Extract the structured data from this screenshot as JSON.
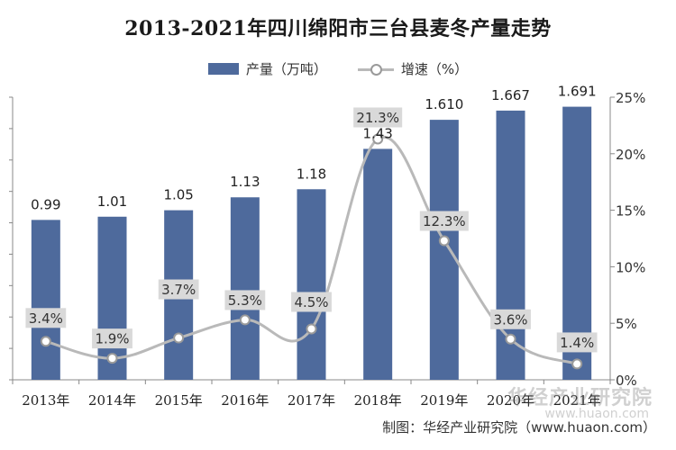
{
  "title": "2013-2021年四川绵阳市三台县麦冬产量走势",
  "source": "制图：华经产业研究院（www.huaon.com）",
  "watermark": "华经产业研究院",
  "watermark_url": "www.huaon.com",
  "colors": {
    "bar": "#4e6a9c",
    "line": "#b9b9b9",
    "marker": "#9a9a9a",
    "label_bg": "#d9d9d9"
  },
  "legend": [
    {
      "label": "产量（万吨）",
      "kind": "bar"
    },
    {
      "label": "增速（%）",
      "kind": "line"
    }
  ],
  "chart_data": {
    "type": "bar+line",
    "categories": [
      "2013年",
      "2014年",
      "2015年",
      "2016年",
      "2017年",
      "2018年",
      "2019年",
      "2020年",
      "2021年"
    ],
    "series": [
      {
        "name": "产量（万吨）",
        "type": "bar",
        "axis": "left",
        "values": [
          0.99,
          1.01,
          1.05,
          1.13,
          1.18,
          1.43,
          1.61,
          1.667,
          1.691
        ],
        "labels": [
          "0.99",
          "1.01",
          "1.05",
          "1.13",
          "1.18",
          "1.43",
          "1.610",
          "1.667",
          "1.691"
        ]
      },
      {
        "name": "增速（%）",
        "type": "line",
        "axis": "right",
        "values": [
          3.4,
          1.9,
          3.7,
          5.3,
          4.5,
          21.3,
          12.3,
          3.6,
          1.4
        ],
        "labels": [
          "3.4%",
          "1.9%",
          "3.7%",
          "5.3%",
          "4.5%",
          "21.3%",
          "12.3%",
          "3.6%",
          "1.4%"
        ]
      }
    ],
    "y_left": {
      "min": 0,
      "max": 1.75
    },
    "y_right": {
      "min": 0,
      "max": 25,
      "ticks": [
        0,
        5,
        10,
        15,
        20,
        25
      ],
      "tick_labels": [
        "0%",
        "5%",
        "10%",
        "15%",
        "20%",
        "25%"
      ]
    },
    "legend_position": "top-center",
    "grid": false
  }
}
